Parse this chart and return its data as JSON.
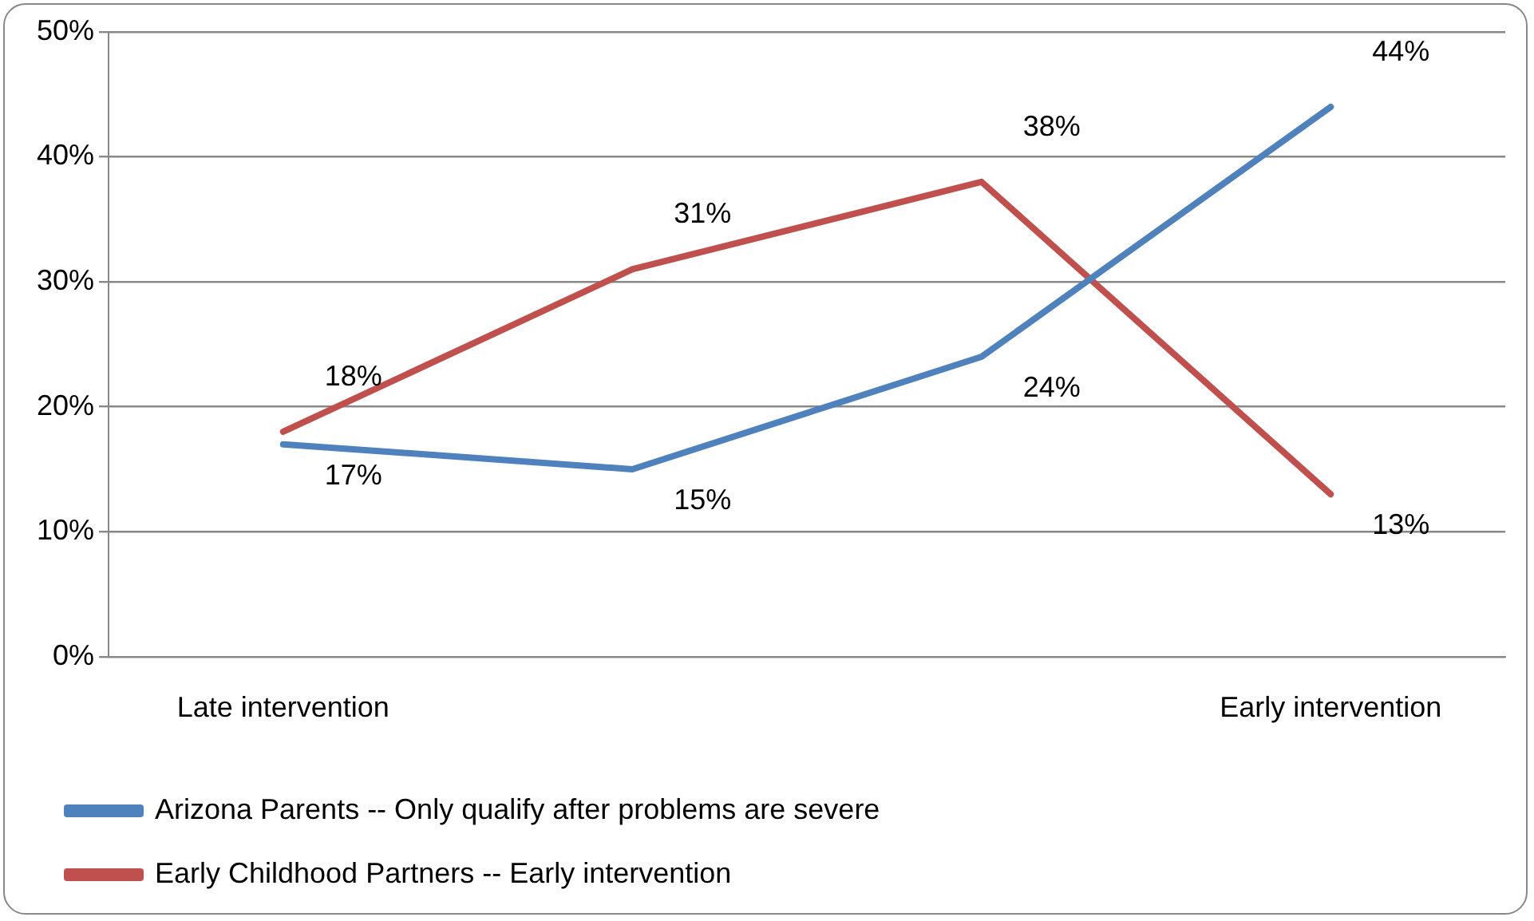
{
  "chart_data": {
    "type": "line",
    "categories": [
      "Late intervention",
      null,
      null,
      "Early intervention"
    ],
    "series": [
      {
        "name": "Arizona Parents -- Only qualify after problems are severe",
        "color": "#4f81bd",
        "values": [
          17,
          15,
          24,
          44
        ],
        "value_labels": [
          "17%",
          "15%",
          "24%",
          "44%"
        ]
      },
      {
        "name": "Early Childhood Partners -- Early intervention",
        "color": "#c0504d",
        "values": [
          18,
          31,
          38,
          13
        ],
        "value_labels": [
          "18%",
          "31%",
          "38%",
          "13%"
        ]
      }
    ],
    "ylim": [
      0,
      50
    ],
    "yticks": [
      {
        "value": 0,
        "label": "0%"
      },
      {
        "value": 10,
        "label": "10%"
      },
      {
        "value": 20,
        "label": "20%"
      },
      {
        "value": 30,
        "label": "30%"
      },
      {
        "value": 40,
        "label": "40%"
      },
      {
        "value": 50,
        "label": "50%"
      }
    ],
    "grid": "y",
    "legend": "bottom",
    "marker": "none",
    "line_style": "solid"
  }
}
